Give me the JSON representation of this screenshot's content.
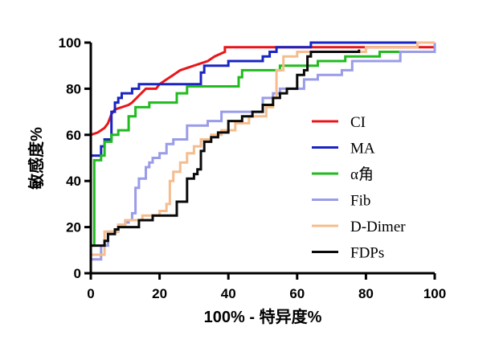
{
  "chart_data": {
    "type": "line",
    "xlabel": "100% - 特异度%",
    "ylabel": "敏感度%",
    "xlim": [
      0,
      100
    ],
    "ylim": [
      0,
      100
    ],
    "x_ticks": [
      "0",
      "20",
      "40",
      "60",
      "80",
      "100"
    ],
    "y_ticks": [
      "0",
      "20",
      "40",
      "60",
      "80",
      "100"
    ],
    "grid": false,
    "legend_position": "right",
    "series": [
      {
        "name": "CI",
        "color": "#e8161b",
        "points": [
          [
            0,
            0
          ],
          [
            0,
            60
          ],
          [
            2,
            61
          ],
          [
            3,
            62
          ],
          [
            4,
            63
          ],
          [
            5,
            65
          ],
          [
            6,
            69
          ],
          [
            7,
            71
          ],
          [
            9,
            72
          ],
          [
            11,
            73
          ],
          [
            12,
            74
          ],
          [
            14,
            77
          ],
          [
            16,
            80
          ],
          [
            19,
            80
          ],
          [
            20,
            82
          ],
          [
            22,
            84
          ],
          [
            24,
            86
          ],
          [
            26,
            88
          ],
          [
            30,
            90
          ],
          [
            34,
            92
          ],
          [
            36,
            94
          ],
          [
            39,
            96
          ],
          [
            39,
            98
          ],
          [
            100,
            98
          ],
          [
            100,
            100
          ]
        ]
      },
      {
        "name": "MA",
        "color": "#1a24c2",
        "points": [
          [
            0,
            0
          ],
          [
            0,
            51
          ],
          [
            3,
            51
          ],
          [
            3,
            55
          ],
          [
            4,
            55
          ],
          [
            4,
            58
          ],
          [
            6,
            58
          ],
          [
            6,
            70
          ],
          [
            7,
            70
          ],
          [
            7,
            74
          ],
          [
            8,
            74
          ],
          [
            8,
            76
          ],
          [
            9,
            76
          ],
          [
            9,
            78
          ],
          [
            12,
            78
          ],
          [
            12,
            80
          ],
          [
            14,
            80
          ],
          [
            14,
            82
          ],
          [
            32,
            82
          ],
          [
            32,
            87
          ],
          [
            33,
            87
          ],
          [
            33,
            90
          ],
          [
            40,
            90
          ],
          [
            40,
            92
          ],
          [
            50,
            92
          ],
          [
            50,
            94
          ],
          [
            52,
            94
          ],
          [
            52,
            96
          ],
          [
            54,
            96
          ],
          [
            54,
            98
          ],
          [
            64,
            98
          ],
          [
            64,
            100
          ],
          [
            100,
            100
          ]
        ]
      },
      {
        "name": "α角",
        "color": "#21bb1f",
        "points": [
          [
            0,
            0
          ],
          [
            0,
            12
          ],
          [
            1,
            12
          ],
          [
            1,
            49
          ],
          [
            3,
            49
          ],
          [
            3,
            51
          ],
          [
            4,
            51
          ],
          [
            4,
            57
          ],
          [
            6,
            57
          ],
          [
            6,
            60
          ],
          [
            8,
            60
          ],
          [
            8,
            62
          ],
          [
            11,
            62
          ],
          [
            11,
            68
          ],
          [
            13,
            68
          ],
          [
            13,
            72
          ],
          [
            17,
            72
          ],
          [
            17,
            74
          ],
          [
            25,
            74
          ],
          [
            25,
            78
          ],
          [
            28,
            78
          ],
          [
            28,
            81
          ],
          [
            43,
            81
          ],
          [
            43,
            85
          ],
          [
            44,
            85
          ],
          [
            44,
            88
          ],
          [
            55,
            88
          ],
          [
            55,
            90
          ],
          [
            66,
            90
          ],
          [
            66,
            92
          ],
          [
            74,
            92
          ],
          [
            74,
            94
          ],
          [
            84,
            94
          ],
          [
            84,
            96
          ],
          [
            100,
            96
          ],
          [
            100,
            100
          ]
        ]
      },
      {
        "name": "Fib",
        "color": "#9a9ce8",
        "points": [
          [
            0,
            0
          ],
          [
            0,
            6
          ],
          [
            3,
            6
          ],
          [
            3,
            12
          ],
          [
            5,
            12
          ],
          [
            5,
            18
          ],
          [
            8,
            18
          ],
          [
            8,
            21
          ],
          [
            10,
            21
          ],
          [
            10,
            22
          ],
          [
            11,
            22
          ],
          [
            11,
            23
          ],
          [
            12,
            23
          ],
          [
            12,
            26
          ],
          [
            13,
            26
          ],
          [
            13,
            37
          ],
          [
            14,
            37
          ],
          [
            14,
            41
          ],
          [
            16,
            41
          ],
          [
            16,
            46
          ],
          [
            17,
            46
          ],
          [
            17,
            48
          ],
          [
            18,
            48
          ],
          [
            18,
            50
          ],
          [
            20,
            50
          ],
          [
            20,
            52
          ],
          [
            22,
            52
          ],
          [
            22,
            56
          ],
          [
            24,
            56
          ],
          [
            24,
            58
          ],
          [
            28,
            58
          ],
          [
            28,
            64
          ],
          [
            34,
            64
          ],
          [
            34,
            66
          ],
          [
            38,
            66
          ],
          [
            38,
            70
          ],
          [
            50,
            70
          ],
          [
            50,
            76
          ],
          [
            53,
            76
          ],
          [
            53,
            78
          ],
          [
            55,
            78
          ],
          [
            55,
            80
          ],
          [
            62,
            80
          ],
          [
            62,
            84
          ],
          [
            66,
            84
          ],
          [
            66,
            86
          ],
          [
            73,
            86
          ],
          [
            73,
            88
          ],
          [
            76,
            88
          ],
          [
            76,
            92
          ],
          [
            90,
            92
          ],
          [
            90,
            96
          ],
          [
            100,
            96
          ],
          [
            100,
            100
          ]
        ]
      },
      {
        "name": "D-Dimer",
        "color": "#f5bd8d",
        "points": [
          [
            0,
            0
          ],
          [
            0,
            8
          ],
          [
            4,
            8
          ],
          [
            4,
            18
          ],
          [
            8,
            18
          ],
          [
            8,
            21
          ],
          [
            10,
            21
          ],
          [
            10,
            23
          ],
          [
            15,
            23
          ],
          [
            15,
            25
          ],
          [
            20,
            25
          ],
          [
            20,
            27
          ],
          [
            22,
            27
          ],
          [
            22,
            30
          ],
          [
            23,
            30
          ],
          [
            23,
            40
          ],
          [
            24,
            40
          ],
          [
            24,
            44
          ],
          [
            26,
            44
          ],
          [
            26,
            48
          ],
          [
            28,
            48
          ],
          [
            28,
            52
          ],
          [
            30,
            52
          ],
          [
            30,
            55
          ],
          [
            32,
            55
          ],
          [
            32,
            58
          ],
          [
            35,
            58
          ],
          [
            35,
            60
          ],
          [
            38,
            60
          ],
          [
            38,
            62
          ],
          [
            42,
            62
          ],
          [
            42,
            65
          ],
          [
            46,
            65
          ],
          [
            46,
            68
          ],
          [
            51,
            68
          ],
          [
            51,
            72
          ],
          [
            53,
            72
          ],
          [
            53,
            76
          ],
          [
            54,
            76
          ],
          [
            54,
            88
          ],
          [
            56,
            88
          ],
          [
            56,
            94
          ],
          [
            60,
            94
          ],
          [
            60,
            96
          ],
          [
            80,
            96
          ],
          [
            80,
            98
          ],
          [
            95,
            98
          ],
          [
            95,
            100
          ],
          [
            100,
            100
          ]
        ]
      },
      {
        "name": "FDPs",
        "color": "#0a0a0a",
        "points": [
          [
            0,
            0
          ],
          [
            0,
            12
          ],
          [
            4,
            12
          ],
          [
            4,
            14
          ],
          [
            5,
            14
          ],
          [
            5,
            17
          ],
          [
            7,
            17
          ],
          [
            7,
            19
          ],
          [
            8,
            19
          ],
          [
            8,
            20
          ],
          [
            14,
            20
          ],
          [
            14,
            23
          ],
          [
            18,
            23
          ],
          [
            18,
            25
          ],
          [
            25,
            25
          ],
          [
            25,
            31
          ],
          [
            28,
            31
          ],
          [
            28,
            41
          ],
          [
            30,
            41
          ],
          [
            30,
            43
          ],
          [
            31,
            43
          ],
          [
            31,
            45
          ],
          [
            32,
            45
          ],
          [
            32,
            53
          ],
          [
            33,
            53
          ],
          [
            33,
            57
          ],
          [
            35,
            57
          ],
          [
            35,
            59
          ],
          [
            37,
            59
          ],
          [
            37,
            61
          ],
          [
            40,
            61
          ],
          [
            40,
            66
          ],
          [
            44,
            66
          ],
          [
            44,
            68
          ],
          [
            47,
            68
          ],
          [
            47,
            70
          ],
          [
            50,
            70
          ],
          [
            50,
            73
          ],
          [
            53,
            73
          ],
          [
            53,
            76
          ],
          [
            55,
            76
          ],
          [
            55,
            78
          ],
          [
            57,
            78
          ],
          [
            57,
            80
          ],
          [
            60,
            80
          ],
          [
            60,
            86
          ],
          [
            62,
            86
          ],
          [
            62,
            88
          ],
          [
            63,
            88
          ],
          [
            63,
            94
          ],
          [
            64,
            94
          ],
          [
            64,
            96
          ],
          [
            78,
            96
          ],
          [
            78,
            97
          ]
        ]
      }
    ]
  }
}
